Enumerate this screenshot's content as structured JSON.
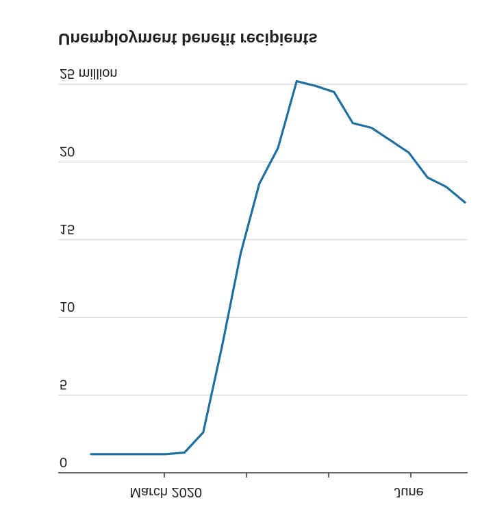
{
  "chart_data": {
    "type": "line",
    "title": "Unemployment benefit recipients",
    "x_labels": [
      {
        "text": "March 2020",
        "index": 4
      },
      {
        "text": "June",
        "index": 17
      }
    ],
    "y_ticks": [
      {
        "value": 0,
        "label": "0"
      },
      {
        "value": 5,
        "label": "5"
      },
      {
        "value": 10,
        "label": "10"
      },
      {
        "value": 15,
        "label": "15"
      },
      {
        "value": 20,
        "label": "20"
      },
      {
        "value": 25,
        "label": "25 million"
      }
    ],
    "ylim": [
      0,
      25
    ],
    "grid": true,
    "series": [
      {
        "color": "#1f6fa0",
        "values": [
          1.2,
          1.2,
          1.2,
          1.2,
          1.2,
          1.3,
          2.6,
          8.1,
          14.1,
          18.6,
          20.9,
          25.2,
          24.9,
          24.5,
          22.5,
          22.2,
          21.4,
          20.6,
          19.0,
          18.4,
          17.4
        ]
      }
    ]
  }
}
